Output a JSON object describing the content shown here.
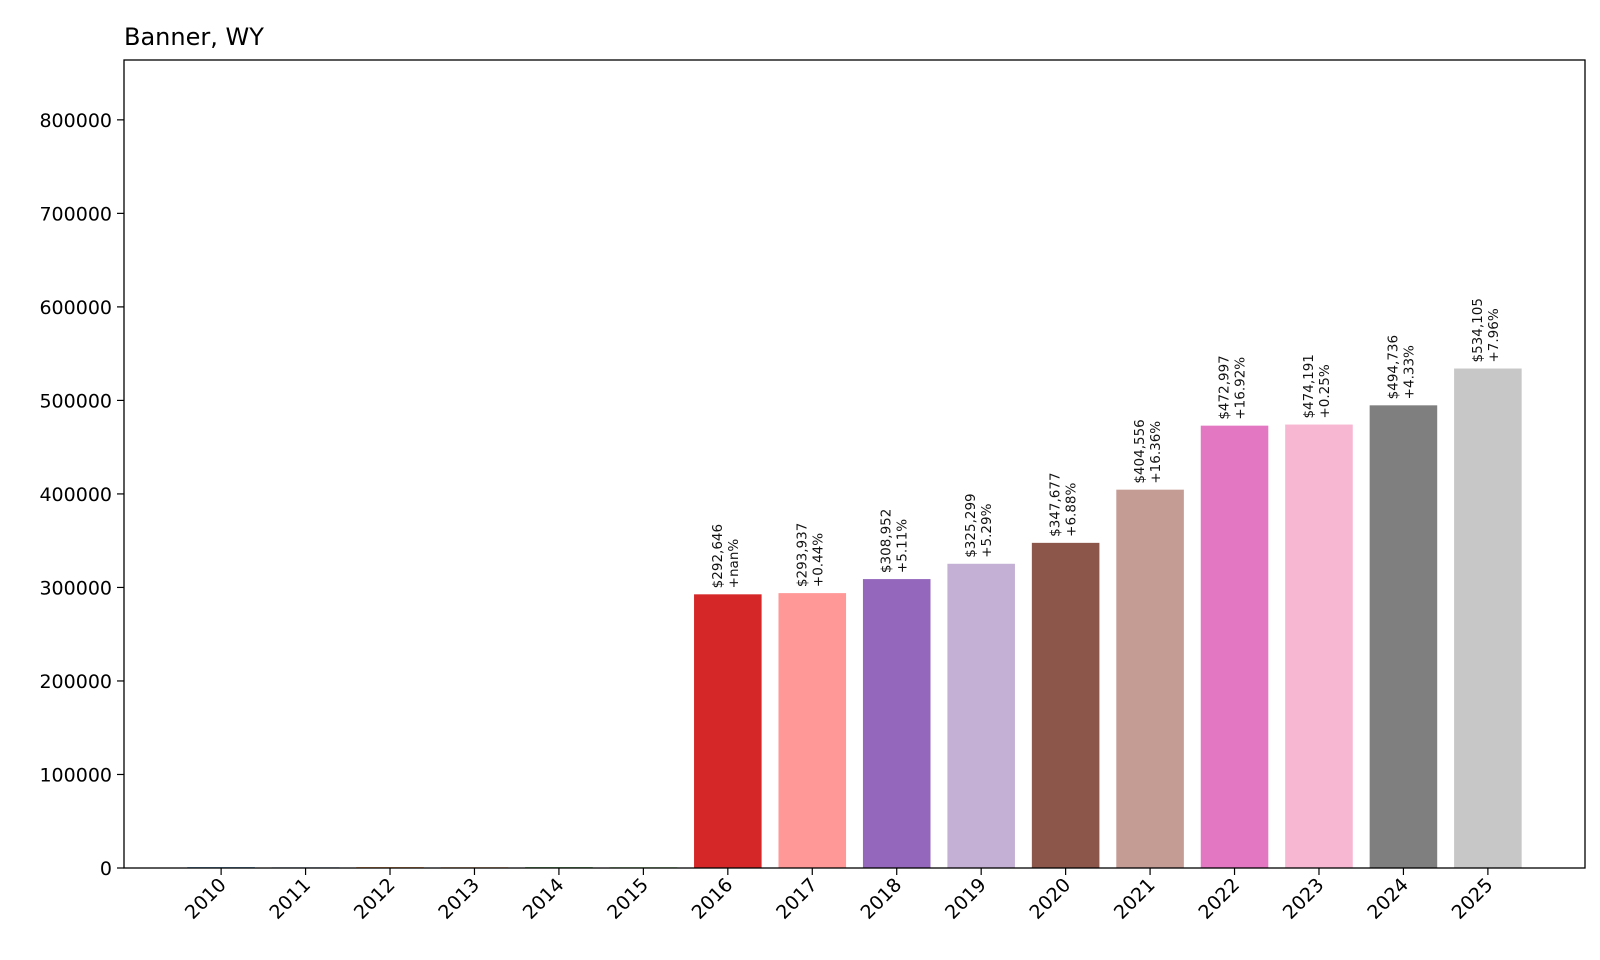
{
  "chart_data": {
    "type": "bar",
    "title": "Banner, WY",
    "xlabel": "",
    "ylabel": "",
    "categories": [
      "2010",
      "2011",
      "2012",
      "2013",
      "2014",
      "2015",
      "2016",
      "2017",
      "2018",
      "2019",
      "2020",
      "2021",
      "2022",
      "2023",
      "2024",
      "2025"
    ],
    "values": [
      0,
      0,
      0,
      0,
      0,
      0,
      292646,
      293937,
      308952,
      325299,
      347677,
      404556,
      472997,
      474191,
      494736,
      534105
    ],
    "value_labels": [
      "",
      "",
      "",
      "",
      "",
      "",
      "$292,646",
      "$293,937",
      "$308,952",
      "$325,299",
      "$347,677",
      "$404,556",
      "$472,997",
      "$474,191",
      "$494,736",
      "$534,105"
    ],
    "change_labels": [
      "",
      "",
      "",
      "",
      "",
      "",
      "+nan%",
      "+0.44%",
      "+5.11%",
      "+5.29%",
      "+6.88%",
      "+16.36%",
      "+16.92%",
      "+0.25%",
      "+4.33%",
      "+7.96%"
    ],
    "colors": [
      "#1f77b4",
      "#aec7e8",
      "#ff7f0e",
      "#ffbb78",
      "#2ca02c",
      "#98df8a",
      "#d62728",
      "#ff9896",
      "#9467bd",
      "#c5b0d5",
      "#8c564b",
      "#c49c94",
      "#e377c2",
      "#f7b6d2",
      "#7f7f7f",
      "#c7c7c7"
    ],
    "ylim": [
      0,
      864000
    ],
    "yticks": [
      0,
      100000,
      200000,
      300000,
      400000,
      500000,
      600000,
      700000,
      800000
    ],
    "ytick_labels": [
      "0",
      "100000",
      "200000",
      "300000",
      "400000",
      "500000",
      "600000",
      "700000",
      "800000"
    ],
    "grid": false,
    "legend": "none"
  }
}
